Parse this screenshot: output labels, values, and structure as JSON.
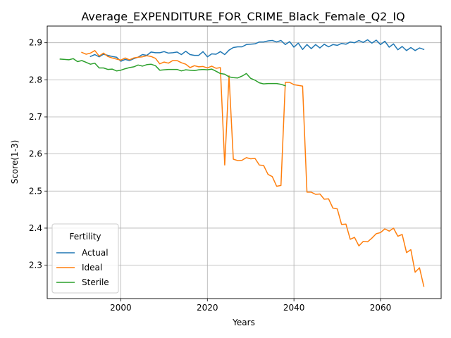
{
  "chart_data": {
    "type": "line",
    "title": "Average_EXPENDITURE_FOR_CRIME_Black_Female_Q2_IQ",
    "xlabel": "Years",
    "ylabel": "Score(1-3)",
    "xlim": [
      1983,
      2074
    ],
    "ylim": [
      2.21,
      2.945
    ],
    "xticks": [
      2000,
      2020,
      2040,
      2060
    ],
    "yticks": [
      2.3,
      2.4,
      2.5,
      2.6,
      2.7,
      2.8,
      2.9
    ],
    "grid": true,
    "legend": {
      "title": "Fertility",
      "position": "lower-left"
    },
    "series": [
      {
        "name": "Actual",
        "color": "#1f77b4",
        "x": [
          1993,
          1994,
          1995,
          1996,
          1997,
          1998,
          1999,
          2000,
          2001,
          2002,
          2003,
          2004,
          2005,
          2006,
          2007,
          2008,
          2009,
          2010,
          2011,
          2012,
          2013,
          2014,
          2015,
          2016,
          2017,
          2018,
          2019,
          2020,
          2021,
          2022,
          2023,
          2024,
          2025,
          2026,
          2027,
          2028,
          2029,
          2030,
          2031,
          2032,
          2033,
          2034,
          2035,
          2036,
          2037,
          2038,
          2039,
          2040,
          2041,
          2042,
          2043,
          2044,
          2045,
          2046,
          2047,
          2048,
          2049,
          2050,
          2051,
          2052,
          2053,
          2054,
          2055,
          2056,
          2057,
          2058,
          2059,
          2060,
          2061,
          2062,
          2063,
          2064,
          2065,
          2066,
          2067,
          2068,
          2069,
          2070
        ],
        "y": [
          2.863,
          2.868,
          2.862,
          2.869,
          2.866,
          2.863,
          2.861,
          2.85,
          2.855,
          2.852,
          2.857,
          2.861,
          2.868,
          2.866,
          2.875,
          2.873,
          2.873,
          2.876,
          2.872,
          2.873,
          2.875,
          2.868,
          2.877,
          2.868,
          2.866,
          2.866,
          2.876,
          2.862,
          2.87,
          2.869,
          2.876,
          2.868,
          2.88,
          2.887,
          2.889,
          2.889,
          2.895,
          2.896,
          2.897,
          2.902,
          2.902,
          2.905,
          2.906,
          2.902,
          2.906,
          2.895,
          2.903,
          2.888,
          2.899,
          2.882,
          2.895,
          2.884,
          2.895,
          2.886,
          2.896,
          2.889,
          2.895,
          2.893,
          2.898,
          2.896,
          2.902,
          2.9,
          2.906,
          2.901,
          2.908,
          2.899,
          2.907,
          2.895,
          2.904,
          2.888,
          2.897,
          2.881,
          2.89,
          2.879,
          2.887,
          2.879,
          2.886,
          2.882
        ]
      },
      {
        "name": "Ideal",
        "color": "#ff7f0e",
        "x": [
          1991,
          1992,
          1993,
          1994,
          1995,
          1996,
          1997,
          1998,
          1999,
          2000,
          2001,
          2002,
          2003,
          2004,
          2005,
          2006,
          2007,
          2008,
          2009,
          2010,
          2011,
          2012,
          2013,
          2014,
          2015,
          2016,
          2017,
          2018,
          2019,
          2020,
          2021,
          2022,
          2023,
          2024,
          2025,
          2026,
          2027,
          2028,
          2029,
          2030,
          2031,
          2032,
          2033,
          2034,
          2035,
          2036,
          2037,
          2038,
          2039,
          2040,
          2041,
          2042,
          2043,
          2044,
          2045,
          2046,
          2047,
          2048,
          2049,
          2050,
          2051,
          2052,
          2053,
          2054,
          2055,
          2056,
          2057,
          2058,
          2059,
          2060,
          2061,
          2062,
          2063,
          2064,
          2065,
          2066,
          2067,
          2068,
          2069,
          2070
        ],
        "y": [
          2.874,
          2.869,
          2.872,
          2.879,
          2.864,
          2.872,
          2.863,
          2.859,
          2.856,
          2.853,
          2.859,
          2.854,
          2.859,
          2.861,
          2.862,
          2.865,
          2.863,
          2.858,
          2.843,
          2.848,
          2.845,
          2.852,
          2.852,
          2.846,
          2.842,
          2.833,
          2.838,
          2.835,
          2.836,
          2.832,
          2.837,
          2.831,
          2.833,
          2.57,
          2.811,
          2.586,
          2.582,
          2.583,
          2.59,
          2.587,
          2.588,
          2.57,
          2.569,
          2.545,
          2.539,
          2.513,
          2.515,
          2.793,
          2.793,
          2.787,
          2.785,
          2.783,
          2.497,
          2.497,
          2.491,
          2.492,
          2.478,
          2.479,
          2.454,
          2.452,
          2.41,
          2.411,
          2.37,
          2.375,
          2.352,
          2.364,
          2.363,
          2.373,
          2.385,
          2.388,
          2.398,
          2.392,
          2.4,
          2.378,
          2.383,
          2.334,
          2.342,
          2.281,
          2.293,
          2.243
        ]
      },
      {
        "name": "Sterile",
        "color": "#2ca02c",
        "x": [
          1986,
          1987,
          1988,
          1989,
          1990,
          1991,
          1992,
          1993,
          1994,
          1995,
          1996,
          1997,
          1998,
          1999,
          2000,
          2001,
          2002,
          2003,
          2004,
          2005,
          2006,
          2007,
          2008,
          2009,
          2010,
          2011,
          2012,
          2013,
          2014,
          2015,
          2016,
          2017,
          2018,
          2019,
          2020,
          2021,
          2022,
          2023,
          2024,
          2025,
          2026,
          2027,
          2028,
          2029,
          2030,
          2031,
          2032,
          2033,
          2034,
          2035,
          2036,
          2037,
          2038
        ],
        "y": [
          2.856,
          2.855,
          2.854,
          2.857,
          2.849,
          2.852,
          2.847,
          2.842,
          2.845,
          2.832,
          2.832,
          2.828,
          2.829,
          2.824,
          2.826,
          2.83,
          2.833,
          2.835,
          2.84,
          2.837,
          2.841,
          2.842,
          2.838,
          2.826,
          2.827,
          2.828,
          2.828,
          2.828,
          2.824,
          2.827,
          2.826,
          2.825,
          2.827,
          2.828,
          2.827,
          2.829,
          2.823,
          2.817,
          2.815,
          2.808,
          2.806,
          2.805,
          2.81,
          2.817,
          2.804,
          2.799,
          2.792,
          2.789,
          2.79,
          2.79,
          2.79,
          2.788,
          2.784
        ]
      }
    ]
  }
}
